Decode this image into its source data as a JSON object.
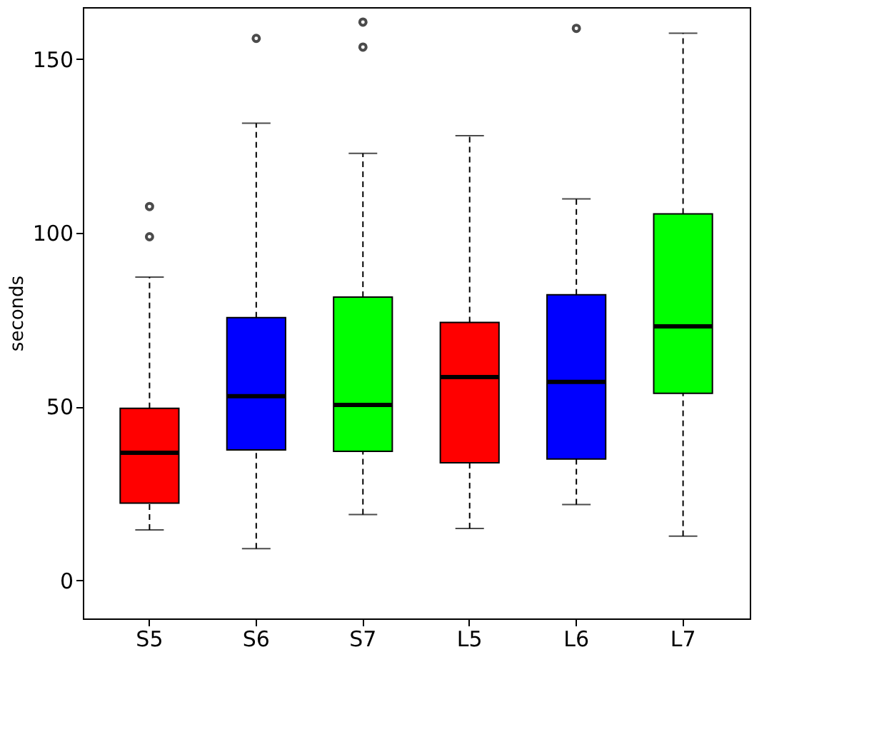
{
  "chart_data": {
    "type": "box",
    "ylabel": "seconds",
    "categories": [
      "S5",
      "S6",
      "S7",
      "L5",
      "L6",
      "L7"
    ],
    "colors": [
      "#ff0000",
      "#0000ff",
      "#00ff00",
      "#ff0000",
      "#0000ff",
      "#00ff00"
    ],
    "boxes": [
      {
        "low": 14.5,
        "q1": 22.2,
        "median": 36.7,
        "q3": 49.5,
        "high": 87.3,
        "outliers": [
          107.6,
          98.9
        ]
      },
      {
        "low": 9.1,
        "q1": 37.5,
        "median": 53,
        "q3": 75.6,
        "high": 131.6,
        "outliers": [
          156
        ]
      },
      {
        "low": 18.9,
        "q1": 37.1,
        "median": 50.5,
        "q3": 81.5,
        "high": 122.9,
        "outliers": [
          160.7,
          153.5
        ]
      },
      {
        "low": 14.9,
        "q1": 33.8,
        "median": 58.5,
        "q3": 74.2,
        "high": 128
      },
      {
        "low": 21.8,
        "q1": 34.9,
        "median": 57.1,
        "q3": 82.2,
        "high": 109.8,
        "outliers": [
          158.9
        ]
      },
      {
        "low": 12.7,
        "q1": 53.8,
        "median": 73.1,
        "q3": 105.5,
        "high": 157.5
      }
    ],
    "ylim": [
      -11,
      165
    ],
    "yticks": [
      0,
      50,
      100,
      150
    ],
    "grid": false,
    "line_style": "dashed",
    "legend": false
  }
}
